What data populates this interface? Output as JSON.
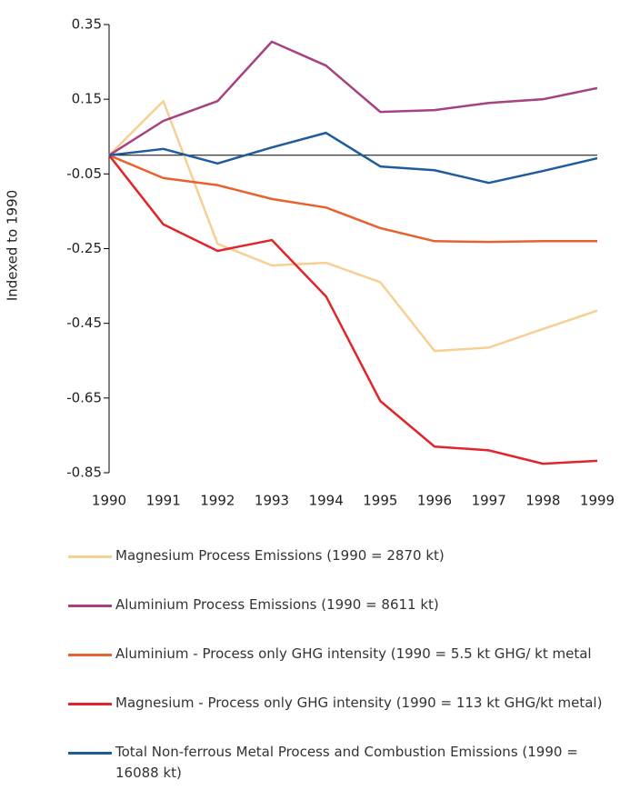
{
  "chart_data": {
    "type": "line",
    "y_label": "Indexed to 1990",
    "categories": [
      "1990",
      "1991",
      "1992",
      "1993",
      "1994",
      "1995",
      "1996",
      "1997",
      "1998",
      "1999"
    ],
    "series": [
      {
        "name": "Magnesium Process Emissions (1990 = 2870 kt)",
        "color": "#f8cf92",
        "values": [
          0,
          0.145,
          -0.237,
          -0.295,
          -0.288,
          -0.34,
          -0.524,
          -0.515,
          -0.465,
          -0.416
        ]
      },
      {
        "name": "Aluminium Process Emissions (1990 = 8611 kt)",
        "color": "#a6427f",
        "values": [
          0,
          0.092,
          0.145,
          0.304,
          0.24,
          0.116,
          0.121,
          0.14,
          0.15,
          0.18
        ]
      },
      {
        "name": "Aluminium - Process only GHG intensity (1990 = 5.5 kt GHG/ kt metal",
        "color": "#e8622f",
        "values": [
          0,
          -0.061,
          -0.08,
          -0.117,
          -0.14,
          -0.195,
          -0.23,
          -0.232,
          -0.23,
          -0.23
        ]
      },
      {
        "name": "Magnesium - Process only GHG intensity (1990 = 113 kt GHG/kt metal)",
        "color": "#e0262a",
        "values": [
          0,
          -0.185,
          -0.256,
          -0.227,
          -0.378,
          -0.658,
          -0.78,
          -0.79,
          -0.826,
          -0.818
        ]
      },
      {
        "name": "Total Non-ferrous Metal Process and Combustion Emissions (1990 = 16088 kt)",
        "color": "#1f5c9e",
        "values": [
          0,
          0.017,
          -0.022,
          0.021,
          0.06,
          -0.03,
          -0.04,
          -0.074,
          -0.042,
          -0.008
        ]
      }
    ],
    "ylim": [
      -0.85,
      0.35
    ],
    "yticks": [
      -0.85,
      -0.65,
      -0.45,
      -0.25,
      -0.05,
      0.15,
      0.35
    ]
  }
}
